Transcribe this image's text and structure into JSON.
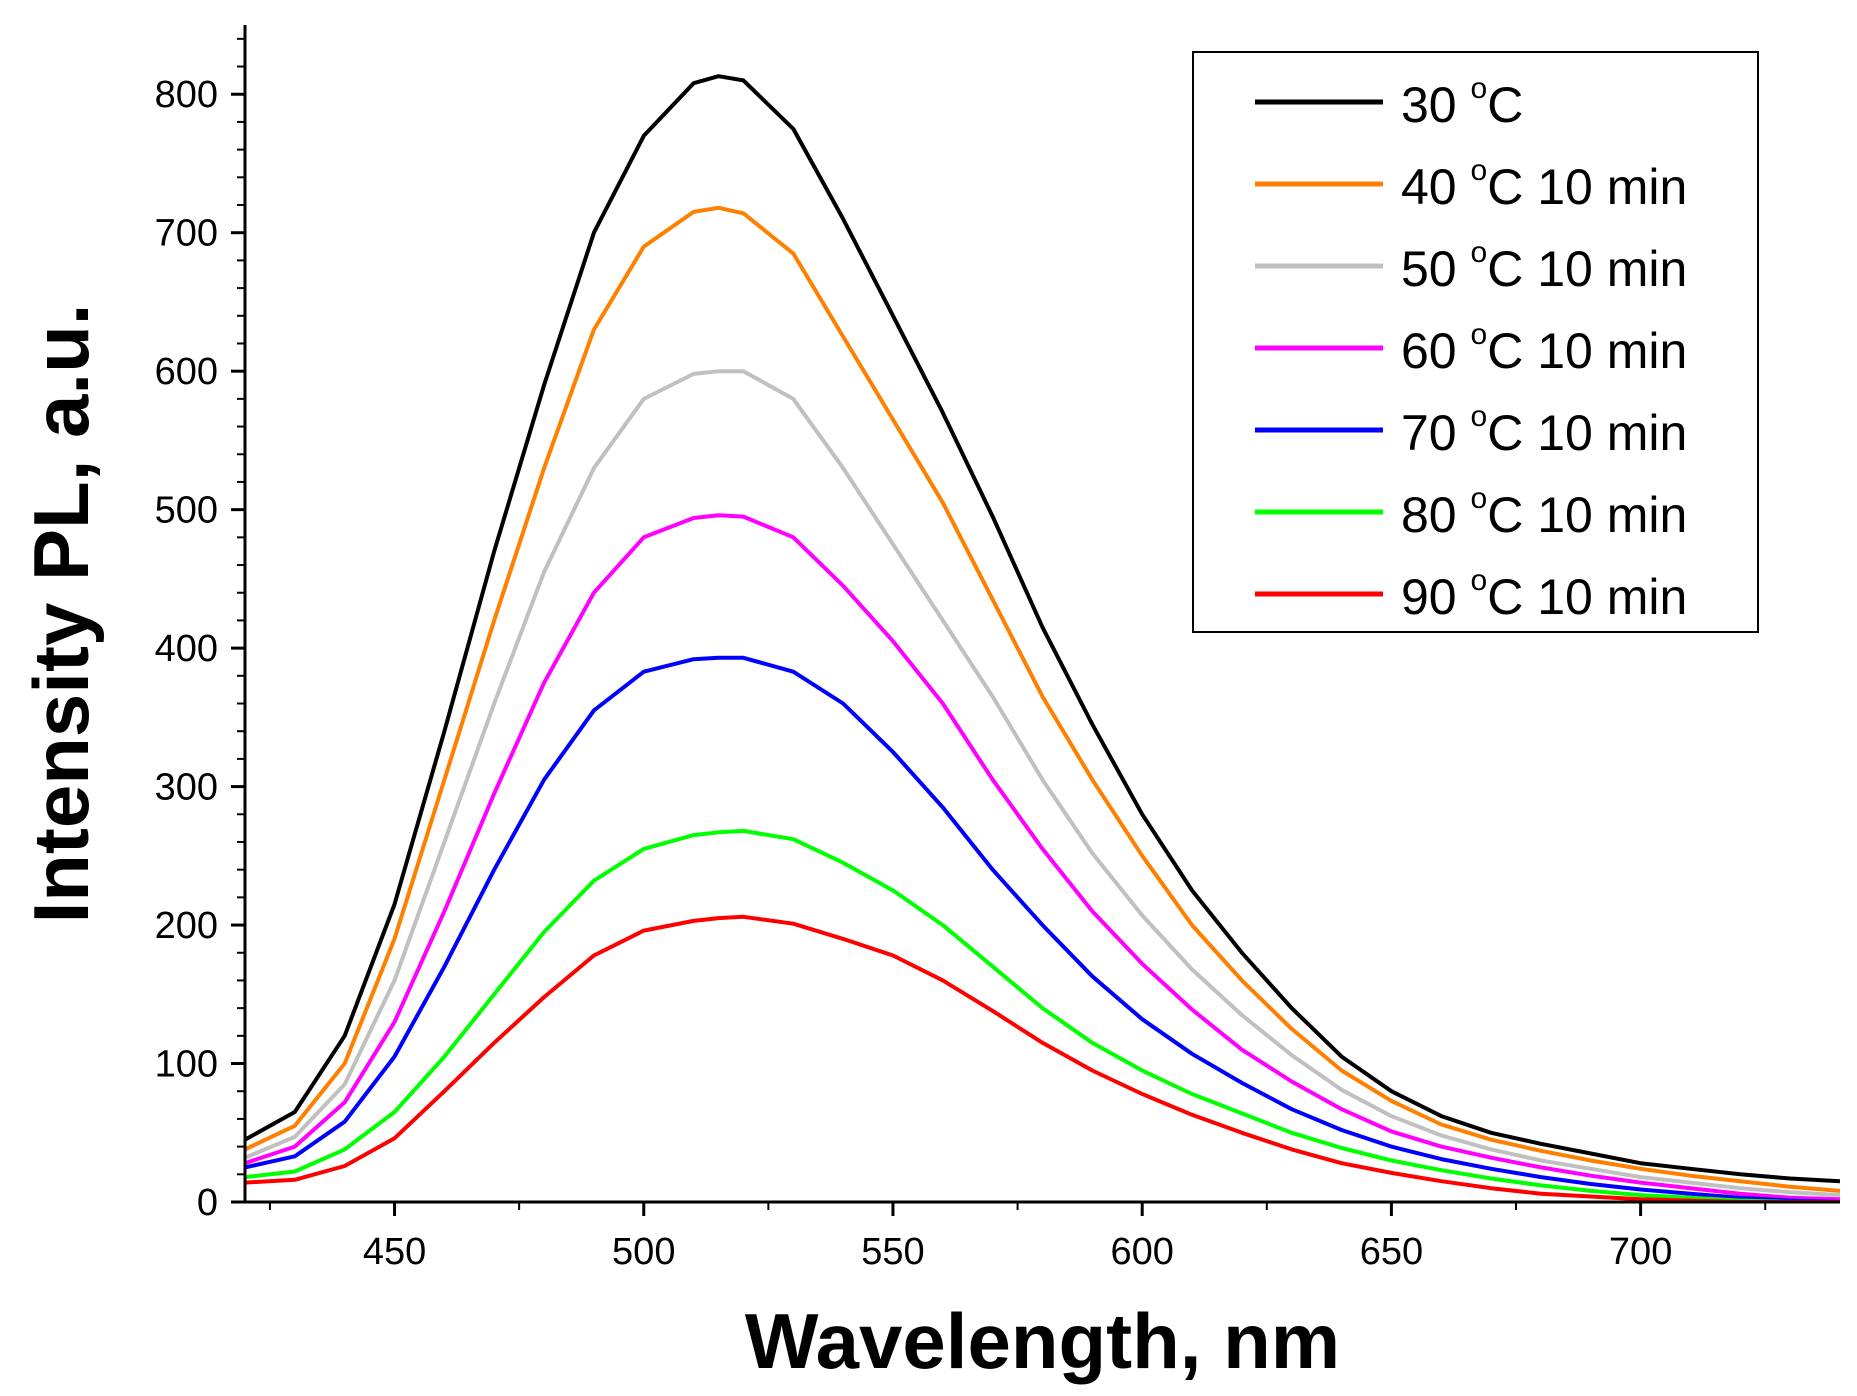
{
  "chart_data": {
    "type": "line",
    "title": "",
    "xlabel": "Wavelength, nm",
    "ylabel": "Intensity PL, a.u.",
    "xlim": [
      420,
      740
    ],
    "ylim": [
      0,
      850
    ],
    "xticks": [
      450,
      500,
      550,
      600,
      650,
      700
    ],
    "yticks": [
      0,
      100,
      200,
      300,
      400,
      500,
      600,
      700,
      800
    ],
    "grid": false,
    "legend_position": "top-right",
    "x": [
      420,
      430,
      440,
      450,
      460,
      470,
      480,
      490,
      500,
      510,
      515,
      520,
      530,
      540,
      550,
      560,
      570,
      580,
      590,
      600,
      610,
      620,
      630,
      640,
      650,
      660,
      670,
      680,
      690,
      700,
      710,
      720,
      730,
      740
    ],
    "series": [
      {
        "name": "30 °C",
        "label_main": "30 ",
        "label_deg": "o",
        "label_rest": "C",
        "color": "#000000",
        "values": [
          45,
          65,
          120,
          215,
          340,
          470,
          590,
          700,
          770,
          808,
          813,
          810,
          775,
          710,
          640,
          570,
          495,
          415,
          345,
          280,
          225,
          180,
          140,
          105,
          80,
          62,
          50,
          42,
          35,
          28,
          24,
          20,
          17,
          15
        ]
      },
      {
        "name": "40 °C 10 min",
        "label_main": "40 ",
        "label_deg": "o",
        "label_rest": "C 10 min",
        "color": "#ff8000",
        "values": [
          38,
          55,
          100,
          190,
          305,
          420,
          530,
          630,
          690,
          715,
          718,
          714,
          685,
          625,
          565,
          505,
          435,
          365,
          305,
          250,
          200,
          160,
          125,
          95,
          73,
          56,
          45,
          37,
          30,
          24,
          19,
          15,
          11,
          8
        ]
      },
      {
        "name": "50 °C 10 min",
        "label_main": "50 ",
        "label_deg": "o",
        "label_rest": "C 10 min",
        "color": "#c0c0c0",
        "values": [
          32,
          47,
          85,
          160,
          260,
          360,
          455,
          530,
          580,
          598,
          600,
          600,
          580,
          530,
          475,
          420,
          365,
          305,
          252,
          207,
          168,
          135,
          106,
          81,
          62,
          48,
          38,
          30,
          24,
          18,
          14,
          10,
          7,
          5
        ]
      },
      {
        "name": "60 °C 10 min",
        "label_main": "60 ",
        "label_deg": "o",
        "label_rest": "C 10 min",
        "color": "#ff00ff",
        "values": [
          28,
          40,
          72,
          130,
          210,
          295,
          375,
          440,
          480,
          494,
          496,
          495,
          480,
          445,
          405,
          360,
          305,
          255,
          210,
          172,
          139,
          110,
          87,
          67,
          51,
          40,
          32,
          25,
          19,
          14,
          10,
          6,
          3,
          2
        ]
      },
      {
        "name": "70 °C 10 min",
        "label_main": "70 ",
        "label_deg": "o",
        "label_rest": "C 10 min",
        "color": "#0000ff",
        "values": [
          25,
          33,
          58,
          105,
          170,
          240,
          305,
          355,
          383,
          392,
          393,
          393,
          383,
          360,
          325,
          285,
          240,
          200,
          163,
          132,
          107,
          86,
          67,
          52,
          40,
          31,
          24,
          18,
          13,
          9,
          6,
          3,
          1,
          0
        ]
      },
      {
        "name": "80 °C 10 min",
        "label_main": "80 ",
        "label_deg": "o",
        "label_rest": "C 10 min",
        "color": "#00ff00",
        "values": [
          18,
          22,
          38,
          65,
          105,
          150,
          195,
          232,
          255,
          265,
          267,
          268,
          262,
          245,
          225,
          200,
          170,
          140,
          115,
          95,
          78,
          64,
          50,
          39,
          30,
          23,
          17,
          12,
          8,
          5,
          3,
          1,
          0,
          0
        ]
      },
      {
        "name": "90 °C 10 min",
        "label_main": "90 ",
        "label_deg": "o",
        "label_rest": "C 10 min",
        "color": "#ff0000",
        "values": [
          14,
          16,
          26,
          46,
          80,
          115,
          148,
          178,
          196,
          203,
          205,
          206,
          201,
          190,
          178,
          160,
          138,
          115,
          95,
          78,
          63,
          50,
          38,
          28,
          21,
          15,
          10,
          6,
          4,
          2,
          1,
          0,
          0,
          0
        ]
      }
    ]
  }
}
